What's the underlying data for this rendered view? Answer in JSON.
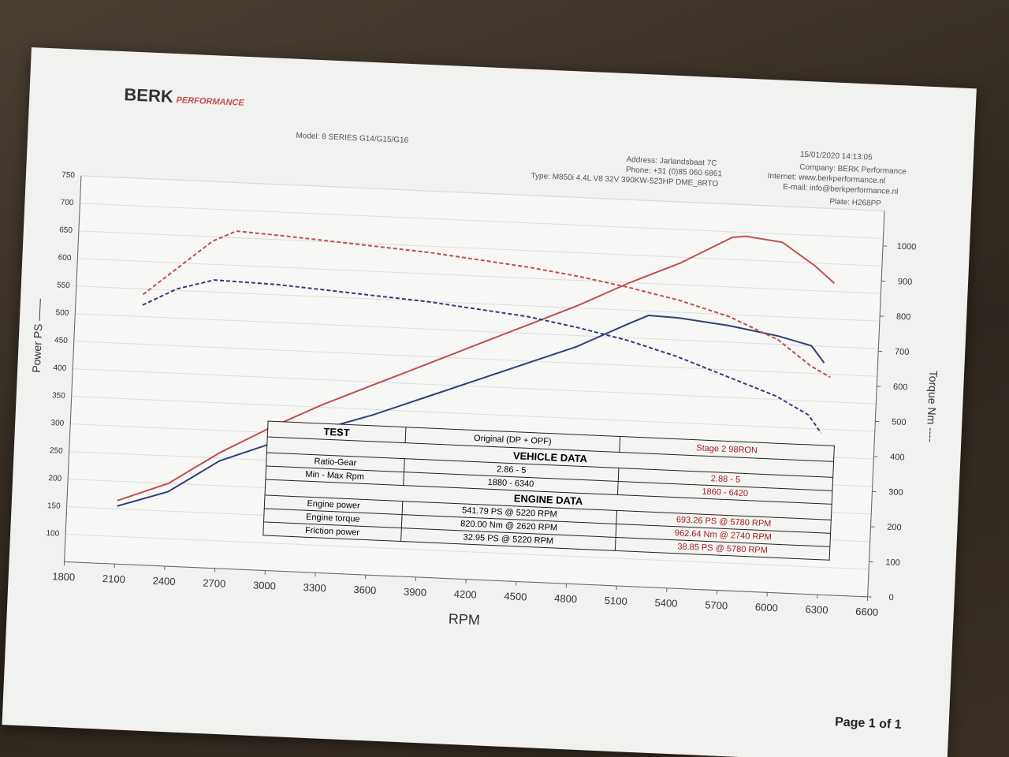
{
  "header": {
    "logo": "BERK",
    "logo_sub": "PERFORMANCE",
    "model": "Model: 8 SERIES G14/G15/G16",
    "date": "15/01/2020 14:13:05",
    "address": "Address: Jarlandsbaat 7C",
    "company": "Company: BERK Performance",
    "phone": "Phone: +31 (0)85 060 6861",
    "internet": "Internet: www.berkperformance.nl",
    "email": "E-mail: info@berkperformance.nl",
    "type": "Type: M850i 4.4L V8 32V 390KW-523HP DME_8RTO",
    "plate": "Plate: H268PP"
  },
  "chart_data": {
    "type": "line",
    "x_label": "RPM",
    "y_label": "Power PS ——",
    "y2_label": "Torque Nm ----",
    "xlim": [
      1800,
      6600
    ],
    "xticks": [
      1800,
      2100,
      2400,
      2700,
      3000,
      3300,
      3600,
      3900,
      4200,
      4500,
      4800,
      5100,
      5400,
      5700,
      6000,
      6300,
      6600
    ],
    "ylim": [
      50,
      750
    ],
    "yticks": [
      100,
      150,
      200,
      250,
      300,
      350,
      400,
      450,
      500,
      550,
      600,
      650,
      700,
      750
    ],
    "y2lim": [
      0,
      1100
    ],
    "y2ticks": [
      0,
      100,
      200,
      300,
      400,
      500,
      600,
      700,
      800,
      900,
      1000
    ],
    "grid": true,
    "series": [
      {
        "color": "#c0504d",
        "style": "solid",
        "axis": "y",
        "x": [
          2100,
          2400,
          2700,
          3000,
          3300,
          3600,
          3900,
          4200,
          4500,
          4800,
          5100,
          5400,
          5700,
          5780,
          6000,
          6200,
          6320
        ],
        "values": [
          165,
          200,
          260,
          310,
          355,
          395,
          435,
          475,
          515,
          555,
          600,
          640,
          690,
          693,
          685,
          645,
          615
        ]
      },
      {
        "color": "#2f3f7a",
        "style": "solid",
        "axis": "y",
        "x": [
          2100,
          2400,
          2700,
          3000,
          3300,
          3600,
          3900,
          4200,
          4500,
          4800,
          5100,
          5220,
          5400,
          5700,
          6000,
          6200,
          6280
        ],
        "values": [
          155,
          185,
          245,
          280,
          310,
          340,
          375,
          410,
          445,
          480,
          525,
          542,
          540,
          530,
          515,
          500,
          470
        ]
      },
      {
        "color": "#c0504d",
        "style": "dashed",
        "axis": "y2",
        "x": [
          2200,
          2400,
          2600,
          2740,
          3000,
          3300,
          3600,
          3900,
          4200,
          4500,
          4800,
          5100,
          5400,
          5700,
          6000,
          6200,
          6320
        ],
        "values": [
          770,
          850,
          930,
          962,
          955,
          945,
          935,
          925,
          910,
          895,
          875,
          850,
          820,
          780,
          720,
          650,
          620
        ]
      },
      {
        "color": "#2f3f7a",
        "style": "dashed",
        "axis": "y2",
        "x": [
          2200,
          2400,
          2620,
          3000,
          3300,
          3600,
          3900,
          4200,
          4500,
          4800,
          5100,
          5400,
          5700,
          6000,
          6200,
          6280
        ],
        "values": [
          740,
          790,
          820,
          815,
          805,
          795,
          785,
          770,
          755,
          730,
          700,
          660,
          610,
          560,
          510,
          460
        ]
      }
    ]
  },
  "table": {
    "rows": [
      [
        "TEST",
        "Original (DP + OPF)",
        "Stage 2 98RON"
      ],
      [
        "VEHICLE DATA"
      ],
      [
        "Ratio-Gear",
        "2.86 - 5",
        "2.88 - 5"
      ],
      [
        "Min - Max Rpm",
        "1880 - 6340",
        "1860 - 6420"
      ],
      [
        "ENGINE DATA"
      ],
      [
        "Engine power",
        "541.79 PS @ 5220 RPM",
        "693.26 PS @ 5780 RPM"
      ],
      [
        "Engine torque",
        "820.00 Nm @ 2620 RPM",
        "962.64 Nm @ 2740 RPM"
      ],
      [
        "Friction power",
        "32.95 PS @ 5220 RPM",
        "38.85 PS @ 5780 RPM"
      ]
    ]
  },
  "footer": {
    "page": "Page 1 of 1"
  }
}
